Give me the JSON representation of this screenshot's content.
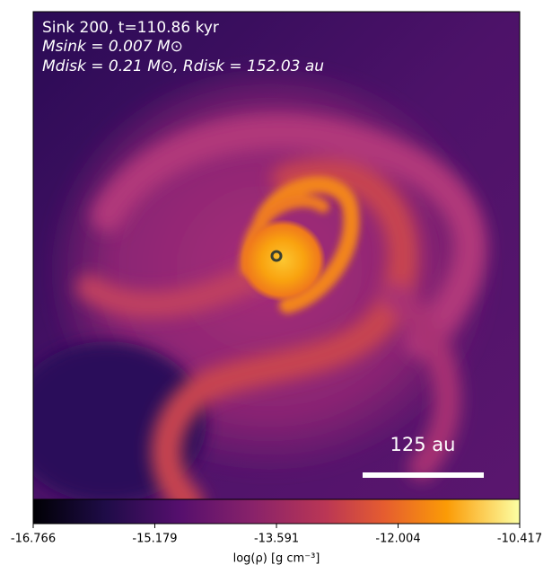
{
  "chart_data": {
    "type": "image",
    "annotations": [
      "Sink 200, t=110.86 kyr",
      "Msink = 0.007 M⊙",
      "Mdisk = 0.21 M⊙, Rdisk = 152.03 au"
    ],
    "scalebar_label": "125 au",
    "colorbar": {
      "label": "log(ρ) [g cm⁻³]",
      "lim": [
        -16.766,
        -10.417
      ],
      "ticks": [
        -16.766,
        -15.179,
        -13.591,
        -12.004,
        -10.417
      ],
      "cmap": "inferno"
    }
  }
}
